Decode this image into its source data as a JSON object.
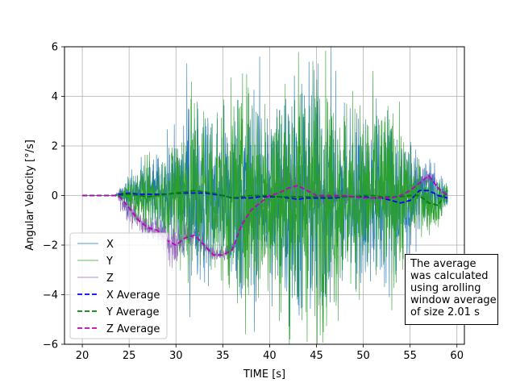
{
  "chart_data": {
    "type": "line",
    "title": "",
    "xlabel": "TIME [s]",
    "ylabel": "Angular Velocity [°/s]",
    "xlim": [
      18.1,
      60.8
    ],
    "ylim": [
      -6,
      6
    ],
    "xticks": [
      20,
      25,
      30,
      35,
      40,
      45,
      50,
      55,
      60
    ],
    "yticks": [
      -6,
      -4,
      -2,
      0,
      2,
      4,
      6
    ],
    "grid": true,
    "legend_position": "lower-left",
    "series": [
      {
        "name": "X",
        "style": "raw",
        "color": "#1f77b4",
        "x": [
          20,
          23.5,
          24,
          25,
          26,
          27,
          28,
          29,
          30,
          31,
          32,
          33,
          34,
          35,
          36,
          37,
          38,
          39,
          40,
          41,
          42,
          43,
          44,
          45,
          46,
          47,
          48,
          49,
          50,
          51,
          52,
          53,
          54,
          55,
          56,
          57,
          58,
          59
        ],
        "mean": [
          0,
          0,
          0.05,
          0.1,
          0.05,
          0.05,
          0.05,
          0.05,
          0.1,
          0.1,
          0.1,
          0.1,
          0.05,
          0,
          -0.1,
          -0.1,
          -0.1,
          -0.05,
          -0.05,
          -0.05,
          -0.1,
          -0.15,
          -0.1,
          -0.1,
          -0.1,
          -0.1,
          -0.05,
          -0.05,
          -0.05,
          -0.1,
          -0.1,
          -0.2,
          -0.3,
          -0.2,
          0.2,
          0.2,
          0,
          -0.1
        ],
        "amp": [
          0,
          0,
          0.1,
          0.6,
          0.8,
          0.9,
          1.0,
          1.2,
          1.8,
          2.5,
          2.5,
          2.4,
          2.3,
          2.2,
          2.6,
          2.8,
          3.0,
          2.8,
          2.8,
          2.9,
          3.2,
          3.4,
          3.4,
          3.4,
          3.3,
          3.0,
          2.5,
          2.3,
          2.3,
          2.4,
          2.5,
          2.5,
          2.2,
          1.3,
          0.9,
          0.8,
          0.6,
          0.3
        ]
      },
      {
        "name": "Y",
        "style": "raw",
        "color": "#2ca02c",
        "x": [
          20,
          23.5,
          24,
          25,
          26,
          27,
          28,
          29,
          30,
          31,
          32,
          33,
          34,
          35,
          36,
          37,
          38,
          39,
          40,
          41,
          42,
          43,
          44,
          45,
          46,
          47,
          48,
          49,
          50,
          51,
          52,
          53,
          54,
          55,
          56,
          57,
          58,
          59
        ],
        "mean": [
          0,
          0,
          0,
          0.05,
          0,
          -0.05,
          0,
          0.05,
          0.1,
          0.15,
          0.2,
          0.15,
          0.1,
          0,
          -0.1,
          -0.05,
          0,
          0,
          0,
          -0.05,
          -0.05,
          -0.05,
          -0.05,
          -0.05,
          -0.05,
          -0.05,
          -0.05,
          -0.05,
          0,
          0,
          -0.05,
          -0.05,
          -0.05,
          0,
          0,
          -0.3,
          -0.4,
          0.2
        ],
        "amp": [
          0,
          0,
          0.1,
          0.5,
          0.7,
          0.9,
          1.0,
          1.1,
          1.9,
          2.5,
          2.6,
          2.5,
          2.4,
          2.3,
          2.7,
          2.9,
          3.0,
          2.9,
          2.9,
          3.1,
          3.3,
          3.5,
          3.5,
          3.5,
          3.3,
          3.0,
          2.6,
          2.4,
          2.4,
          2.5,
          2.5,
          2.4,
          2.0,
          1.2,
          0.9,
          0.8,
          0.6,
          0.3
        ]
      },
      {
        "name": "Z",
        "style": "raw",
        "color": "#9467bd",
        "x": [
          20,
          23.5,
          24,
          25,
          26,
          27,
          28,
          29,
          30,
          31,
          32,
          33,
          34,
          35,
          36,
          37,
          38,
          39,
          40,
          41,
          42,
          43,
          44,
          45,
          46,
          47,
          48,
          49,
          50,
          51,
          52,
          53,
          54,
          55,
          56,
          57,
          58,
          59
        ],
        "mean": [
          0,
          0,
          -0.05,
          -0.5,
          -1.0,
          -1.3,
          -1.4,
          -1.8,
          -2.0,
          -1.7,
          -1.6,
          -2.0,
          -2.4,
          -2.4,
          -2.2,
          -1.2,
          -0.6,
          -0.3,
          0,
          0.1,
          0.3,
          0.4,
          0.2,
          0,
          0,
          0,
          0,
          -0.05,
          -0.1,
          -0.1,
          -0.1,
          -0.1,
          0,
          0.2,
          0.5,
          0.8,
          0.3,
          0
        ],
        "amp": [
          0,
          0,
          0.3,
          0.4,
          0.3,
          0.3,
          0.3,
          0.5,
          0.6,
          0.4,
          0.3,
          0.3,
          0.2,
          0.2,
          0.3,
          0.4,
          0.5,
          0.5,
          0.5,
          0.6,
          0.7,
          0.7,
          0.6,
          0.5,
          0.4,
          0.3,
          0.3,
          0.3,
          0.3,
          0.3,
          0.3,
          0.3,
          0.3,
          0.3,
          0.3,
          0.3,
          0.2,
          0.1
        ]
      },
      {
        "name": "X Average",
        "style": "dashed",
        "color": "#0000ff",
        "x": [
          20,
          23.5,
          24,
          25,
          26,
          27,
          28,
          29,
          30,
          31,
          32,
          33,
          34,
          35,
          36,
          37,
          38,
          39,
          40,
          41,
          42,
          43,
          44,
          45,
          46,
          47,
          48,
          49,
          50,
          51,
          52,
          53,
          54,
          55,
          56,
          57,
          58,
          59
        ],
        "y": [
          0,
          0,
          0.05,
          0.1,
          0.05,
          0.05,
          0.05,
          0.05,
          0.1,
          0.1,
          0.1,
          0.1,
          0.05,
          0,
          -0.1,
          -0.1,
          -0.1,
          -0.05,
          -0.05,
          -0.05,
          -0.1,
          -0.15,
          -0.1,
          -0.1,
          -0.1,
          -0.1,
          -0.05,
          -0.05,
          -0.05,
          -0.1,
          -0.1,
          -0.2,
          -0.3,
          -0.2,
          0.2,
          0.2,
          0,
          -0.1
        ]
      },
      {
        "name": "Y Average",
        "style": "dashed",
        "color": "#008000",
        "x": [
          20,
          23.5,
          24,
          25,
          26,
          27,
          28,
          29,
          30,
          31,
          32,
          33,
          34,
          35,
          36,
          37,
          38,
          39,
          40,
          41,
          42,
          43,
          44,
          45,
          46,
          47,
          48,
          49,
          50,
          51,
          52,
          53,
          54,
          55,
          56,
          57,
          58,
          59
        ],
        "y": [
          0,
          0,
          0,
          0.05,
          0,
          -0.05,
          0,
          0.05,
          0.1,
          0.15,
          0.2,
          0.15,
          0.1,
          0,
          -0.1,
          -0.05,
          0,
          0,
          0,
          -0.05,
          -0.05,
          -0.05,
          -0.05,
          -0.05,
          -0.05,
          -0.05,
          -0.05,
          -0.05,
          0,
          0,
          -0.05,
          -0.05,
          -0.05,
          0,
          0,
          -0.3,
          -0.4,
          0.2
        ]
      },
      {
        "name": "Z Average",
        "style": "dashed",
        "color": "#bf00bf",
        "x": [
          20,
          23.5,
          24,
          25,
          26,
          27,
          28,
          29,
          30,
          31,
          32,
          33,
          34,
          35,
          36,
          37,
          38,
          39,
          40,
          41,
          42,
          43,
          44,
          45,
          46,
          47,
          48,
          49,
          50,
          51,
          52,
          53,
          54,
          55,
          56,
          57,
          58,
          59
        ],
        "y": [
          0,
          0,
          -0.05,
          -0.5,
          -1.0,
          -1.3,
          -1.4,
          -1.8,
          -2.0,
          -1.7,
          -1.6,
          -2.0,
          -2.4,
          -2.4,
          -2.2,
          -1.2,
          -0.6,
          -0.3,
          0,
          0.1,
          0.3,
          0.4,
          0.2,
          0,
          0,
          0,
          0,
          -0.05,
          -0.1,
          -0.1,
          -0.1,
          -0.1,
          0,
          0.2,
          0.5,
          0.8,
          0.3,
          0
        ]
      }
    ],
    "annotation": {
      "lines": [
        "The average",
        "was calculated",
        "using arolling",
        "window average",
        "of size 2.01 s"
      ]
    }
  }
}
